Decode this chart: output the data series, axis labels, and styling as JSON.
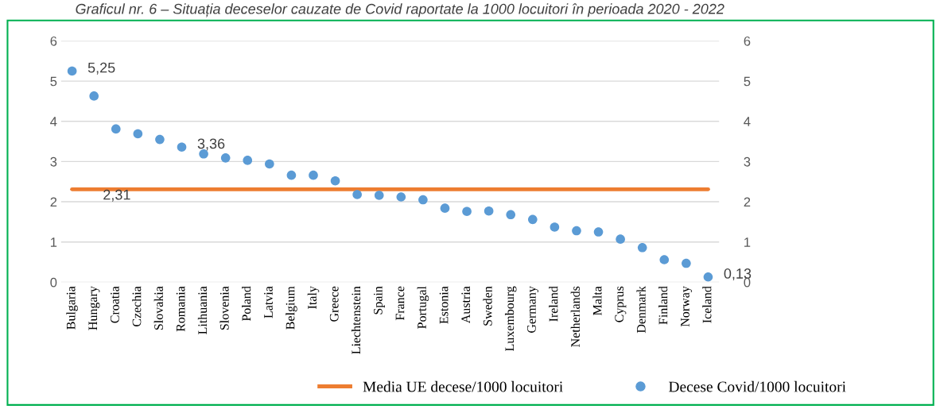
{
  "chart_data": {
    "type": "scatter",
    "title": "Graficul nr. 6 – Situația deceselor cauzate de Covid raportate la 1000 locuitori în perioada 2020 - 2022",
    "categories": [
      "Bulgaria",
      "Hungary",
      "Croatia",
      "Czechia",
      "Slovakia",
      "Romania",
      "Lithuania",
      "Slovenia",
      "Poland",
      "Latvia",
      "Belgium",
      "Italy",
      "Greece",
      "Liechtenstein",
      "Spain",
      "France",
      "Portugal",
      "Estonia",
      "Austria",
      "Sweden",
      "Luxembourg",
      "Germany",
      "Ireland",
      "Netherlands",
      "Malta",
      "Cyprus",
      "Denmark",
      "Finland",
      "Norway",
      "Iceland"
    ],
    "series": [
      {
        "name": "Media UE decese/1000 locuitori",
        "type": "line",
        "color": "#ed7d31",
        "marker": "none",
        "line_style": "solid",
        "values": [
          2.31,
          2.31,
          2.31,
          2.31,
          2.31,
          2.31,
          2.31,
          2.31,
          2.31,
          2.31,
          2.31,
          2.31,
          2.31,
          2.31,
          2.31,
          2.31,
          2.31,
          2.31,
          2.31,
          2.31,
          2.31,
          2.31,
          2.31,
          2.31,
          2.31,
          2.31,
          2.31,
          2.31,
          2.31,
          2.31
        ],
        "value_labels": [
          null,
          "2,31",
          null,
          null,
          null,
          null,
          null,
          null,
          null,
          null,
          null,
          null,
          null,
          null,
          null,
          null,
          null,
          null,
          null,
          null,
          null,
          null,
          null,
          null,
          null,
          null,
          null,
          null,
          null,
          null
        ]
      },
      {
        "name": "Decese Covid/1000 locuitori",
        "type": "scatter",
        "color": "#5b9bd5",
        "marker": "circle",
        "values": [
          5.25,
          4.63,
          3.81,
          3.69,
          3.55,
          3.36,
          3.19,
          3.09,
          3.03,
          2.94,
          2.66,
          2.66,
          2.52,
          2.18,
          2.16,
          2.12,
          2.05,
          1.84,
          1.76,
          1.77,
          1.68,
          1.56,
          1.37,
          1.28,
          1.25,
          1.07,
          0.86,
          0.56,
          0.47,
          0.13
        ],
        "value_labels": [
          "5,25",
          null,
          null,
          null,
          null,
          "3,36",
          null,
          null,
          null,
          null,
          null,
          null,
          null,
          null,
          null,
          null,
          null,
          null,
          null,
          null,
          null,
          null,
          null,
          null,
          null,
          null,
          null,
          null,
          null,
          "0,13"
        ]
      }
    ],
    "ylim": [
      0,
      6
    ],
    "yticks": [
      0,
      1,
      2,
      3,
      4,
      5,
      6
    ],
    "y2lim": [
      0,
      6
    ],
    "y2ticks": [
      0,
      1,
      2,
      3,
      4,
      5,
      6
    ],
    "grid": "y",
    "legend": "bottom"
  }
}
